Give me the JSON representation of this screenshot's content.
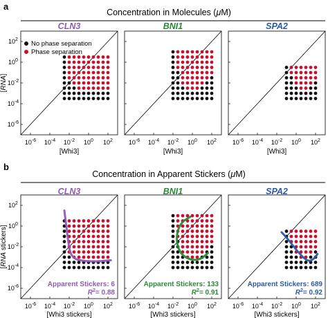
{
  "panel_letters": [
    "a",
    "b"
  ],
  "row_titles": [
    "Concentration in Molecules (μM)",
    "Concentration in Apparent Stickers (μM)"
  ],
  "legend": {
    "items": [
      {
        "label": "No phase separation",
        "color": "#111111"
      },
      {
        "label": "Phase separation",
        "color": "#c8102e"
      }
    ]
  },
  "colors": {
    "no_phase": "#111111",
    "phase": "#c8102e",
    "CLN3": "#8e5bb5",
    "BNI1": "#2a8a3a",
    "SPA2": "#2b5aa8"
  },
  "chart_data": [
    {
      "type": "scatter",
      "row": "a",
      "title": "CLN3",
      "xlabel": "[Whi3]",
      "ylabel": "[RNA]",
      "ylabel_italic_part": "RNA",
      "xscale": "log",
      "yscale": "log",
      "xlim": [
        -7,
        3
      ],
      "ylim": [
        -7,
        3
      ],
      "xticks": [
        -6,
        -4,
        -2,
        0,
        2
      ],
      "yticks": [
        -6,
        -4,
        -2,
        0,
        2
      ],
      "tick_labels": [
        "10-6",
        "10-4",
        "10-2",
        "100",
        "102"
      ],
      "reference_line": "y = x",
      "whi3_levels_log10": [
        -2.5,
        -2,
        -1.5,
        -1,
        -0.5,
        0,
        0.5,
        1,
        1.5,
        2
      ],
      "rna_levels_log10": [
        -3.5,
        -3,
        -2.5,
        -2,
        -1.5,
        -1,
        -0.5,
        0,
        0.5
      ],
      "phase_boundary_log10": [
        [
          -2.5,
          9
        ],
        [
          -2,
          -1.6
        ],
        [
          -1.5,
          -2.1
        ],
        [
          -1,
          -2.6
        ],
        [
          -0.5,
          -2.6
        ],
        [
          0,
          -2.6
        ],
        [
          0.5,
          -2.6
        ],
        [
          1,
          -2.6
        ],
        [
          1.5,
          -2.6
        ],
        [
          2,
          -2.6
        ]
      ]
    },
    {
      "type": "scatter",
      "row": "a",
      "title": "BNI1",
      "xlabel": "[Whi3]",
      "ylabel": "",
      "xscale": "log",
      "yscale": "log",
      "xlim": [
        -7,
        3
      ],
      "ylim": [
        -7,
        3
      ],
      "xticks": [
        -6,
        -4,
        -2,
        0,
        2
      ],
      "yticks": [
        -6,
        -4,
        -2,
        0,
        2
      ],
      "tick_labels": [
        "10-6",
        "10-4",
        "10-2",
        "100",
        "102"
      ],
      "reference_line": "y = x",
      "whi3_levels_log10": [
        -2,
        -1.5,
        -1,
        -0.5,
        0,
        0.5,
        1,
        1.5,
        2
      ],
      "rna_levels_log10": [
        -3.5,
        -3,
        -2.5,
        -2,
        -1.5,
        -1,
        -0.5,
        0,
        0.5,
        1
      ],
      "phase_boundary_log10": [
        [
          -2,
          9
        ],
        [
          -1.5,
          -0.6
        ],
        [
          -1,
          -2.1
        ],
        [
          -0.5,
          -2.6
        ],
        [
          0,
          -2.6
        ],
        [
          0.5,
          -2.6
        ],
        [
          1,
          -2.1
        ],
        [
          1.5,
          -1.6
        ],
        [
          2,
          -1.1
        ]
      ]
    },
    {
      "type": "scatter",
      "row": "a",
      "title": "SPA2",
      "xlabel": "[Whi3]",
      "ylabel": "",
      "xscale": "log",
      "yscale": "log",
      "xlim": [
        -7,
        3
      ],
      "ylim": [
        -7,
        3
      ],
      "xticks": [
        -6,
        -4,
        -2,
        0,
        2
      ],
      "yticks": [
        -6,
        -4,
        -2,
        0,
        2
      ],
      "tick_labels": [
        "10-6",
        "10-4",
        "10-2",
        "100",
        "102"
      ],
      "reference_line": "y = x",
      "whi3_levels_log10": [
        -1,
        -0.5,
        0,
        0.5,
        1,
        1.5,
        2
      ],
      "rna_levels_log10": [
        -3.5,
        -3,
        -2.5,
        -2,
        -1.5,
        -1,
        -0.5
      ],
      "phase_boundary_log10": [
        [
          -1,
          9
        ],
        [
          -0.5,
          -1.1
        ],
        [
          0,
          -2.1
        ],
        [
          0.5,
          -2.6
        ],
        [
          1,
          -2.6
        ],
        [
          1.5,
          -2.1
        ],
        [
          2,
          -1.6
        ]
      ]
    },
    {
      "type": "scatter",
      "row": "b",
      "title": "CLN3",
      "xlabel": "[Whi3 stickers]",
      "ylabel": "[RNA stickers]",
      "ylabel_italic_part": "RNA",
      "xscale": "log",
      "yscale": "log",
      "xlim": [
        -7,
        3
      ],
      "ylim": [
        -7,
        3
      ],
      "xticks": [
        -6,
        -4,
        -2,
        0,
        2
      ],
      "yticks": [
        -6,
        -4,
        -2,
        0,
        2
      ],
      "tick_labels": [
        "10-6",
        "10-4",
        "10-2",
        "100",
        "102"
      ],
      "reference_line": "y = x",
      "whi3_levels_log10": [
        -2.5,
        -2,
        -1.5,
        -1,
        -0.5,
        0,
        0.5,
        1,
        1.5,
        2
      ],
      "rna_levels_log10": [
        -4,
        -3.5,
        -3,
        -2.5,
        -2,
        -1.5,
        -1,
        -0.5,
        0,
        0.5
      ],
      "phase_boundary_log10": [
        [
          -2.5,
          9
        ],
        [
          -2,
          -2.6
        ],
        [
          -1.5,
          -3.1
        ],
        [
          -1,
          -3.1
        ],
        [
          -0.5,
          -3.1
        ],
        [
          0,
          -3.1
        ],
        [
          0.5,
          -3.1
        ],
        [
          1,
          -3.1
        ],
        [
          1.5,
          -3.1
        ],
        [
          2,
          -3.1
        ]
      ],
      "fit_curve_log10": [
        [
          -2.5,
          1.5
        ],
        [
          -2.3,
          0
        ],
        [
          -2.1,
          -1.5
        ],
        [
          -1.9,
          -2.6
        ],
        [
          -1.5,
          -3.1
        ],
        [
          -1,
          -3.3
        ],
        [
          0,
          -3.4
        ],
        [
          1,
          -3.4
        ],
        [
          2.3,
          -3.3
        ]
      ],
      "fit_label": "Apparent Stickers: 6",
      "r2_label": "R²= 0.88"
    },
    {
      "type": "scatter",
      "row": "b",
      "title": "BNI1",
      "xlabel": "[Whi3 stickers]",
      "ylabel": "",
      "xscale": "log",
      "yscale": "log",
      "xlim": [
        -7,
        3
      ],
      "ylim": [
        -7,
        3
      ],
      "xticks": [
        -6,
        -4,
        -2,
        0,
        2
      ],
      "yticks": [
        -6,
        -4,
        -2,
        0,
        2
      ],
      "tick_labels": [
        "10-6",
        "10-4",
        "10-2",
        "100",
        "102"
      ],
      "reference_line": "y = x",
      "whi3_levels_log10": [
        -2,
        -1.5,
        -1,
        -0.5,
        0,
        0.5,
        1,
        1.5,
        2
      ],
      "rna_levels_log10": [
        -4,
        -3.5,
        -3,
        -2.5,
        -2,
        -1.5,
        -1,
        -0.5,
        0,
        0.5,
        1
      ],
      "phase_boundary_log10": [
        [
          -2,
          9
        ],
        [
          -1.5,
          -1.1
        ],
        [
          -1,
          -2.6
        ],
        [
          -0.5,
          -3.1
        ],
        [
          0,
          -3.1
        ],
        [
          0.5,
          -3.1
        ],
        [
          1,
          -2.6
        ],
        [
          1.5,
          -2.1
        ],
        [
          2,
          -1.6
        ]
      ],
      "fit_curve_log10": [
        [
          -0.2,
          0.9
        ],
        [
          -1.1,
          0.4
        ],
        [
          -1.6,
          -0.6
        ],
        [
          -1.6,
          -1.8
        ],
        [
          -1.1,
          -2.8
        ],
        [
          -0.1,
          -3.3
        ],
        [
          0.9,
          -3.2
        ],
        [
          1.6,
          -2.6
        ]
      ],
      "fit_label": "Apparent Stickers: 133",
      "r2_label": "R²= 0.91"
    },
    {
      "type": "scatter",
      "row": "b",
      "title": "SPA2",
      "xlabel": "[Whi3 stickers]",
      "ylabel": "",
      "xscale": "log",
      "yscale": "log",
      "xlim": [
        -7,
        3
      ],
      "ylim": [
        -7,
        3
      ],
      "xticks": [
        -6,
        -4,
        -2,
        0,
        2
      ],
      "yticks": [
        -6,
        -4,
        -2,
        0,
        2
      ],
      "tick_labels": [
        "10-6",
        "10-4",
        "10-2",
        "100",
        "102"
      ],
      "reference_line": "y = x",
      "whi3_levels_log10": [
        -1,
        -0.5,
        0,
        0.5,
        1,
        1.5,
        2
      ],
      "rna_levels_log10": [
        -4,
        -3.5,
        -3,
        -2.5,
        -2,
        -1.5,
        -1,
        -0.5
      ],
      "phase_boundary_log10": [
        [
          -1,
          9
        ],
        [
          -0.5,
          -1.6
        ],
        [
          0,
          -2.6
        ],
        [
          0.5,
          -3.1
        ],
        [
          1,
          -3.1
        ],
        [
          1.5,
          -2.6
        ],
        [
          2,
          -2.1
        ]
      ],
      "fit_curve_log10": [
        [
          -1.5,
          -0.6
        ],
        [
          -1,
          -1.1
        ],
        [
          -0.4,
          -1.8
        ],
        [
          0.2,
          -2.5
        ],
        [
          0.8,
          -3.1
        ],
        [
          1.3,
          -3.4
        ],
        [
          1.8,
          -3.2
        ],
        [
          2.2,
          -2.7
        ]
      ],
      "fit_label": "Apparent Stickers: 689",
      "r2_label": "R²= 0.92"
    }
  ]
}
